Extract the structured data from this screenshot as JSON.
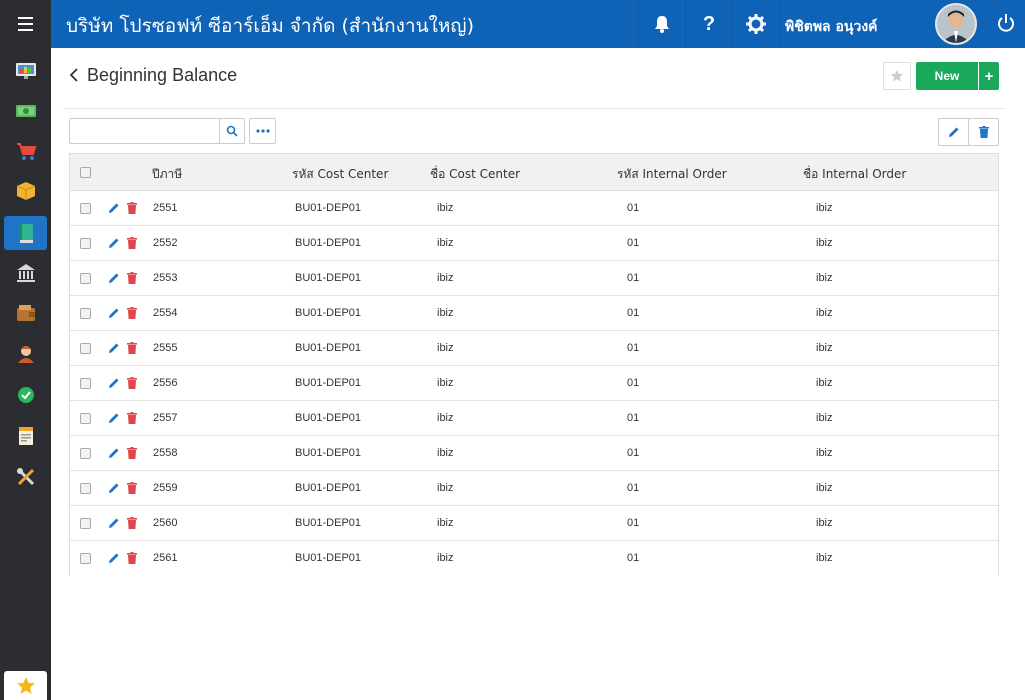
{
  "topbar": {
    "company": "บริษัท โปรซอฟท์ ซีอาร์เอ็ม จำกัด (สำนักงานใหญ่)",
    "user_name": "พิชิตพล อนุวงค์",
    "help_label": "?"
  },
  "sidebar": {
    "items": [
      "monitor-icon",
      "money-icon",
      "cart-icon",
      "box-icon",
      "book-icon",
      "bank-icon",
      "wallet-icon",
      "person-icon",
      "check-icon",
      "report-icon",
      "tools-icon"
    ],
    "active_index": 4,
    "favorite": "star-icon"
  },
  "page": {
    "title": "Beginning Balance",
    "new_label": "New",
    "new_plus": "+"
  },
  "search": {
    "value": "",
    "placeholder": ""
  },
  "table": {
    "columns": [
      "ปีภาษี",
      "รหัส Cost Center",
      "ชื่อ Cost Center",
      "รหัส Internal Order",
      "ชื่อ Internal Order"
    ],
    "rows": [
      [
        "2551",
        "BU01-DEP01",
        "ibiz",
        "01",
        "ibiz"
      ],
      [
        "2552",
        "BU01-DEP01",
        "ibiz",
        "01",
        "ibiz"
      ],
      [
        "2553",
        "BU01-DEP01",
        "ibiz",
        "01",
        "ibiz"
      ],
      [
        "2554",
        "BU01-DEP01",
        "ibiz",
        "01",
        "ibiz"
      ],
      [
        "2555",
        "BU01-DEP01",
        "ibiz",
        "01",
        "ibiz"
      ],
      [
        "2556",
        "BU01-DEP01",
        "ibiz",
        "01",
        "ibiz"
      ],
      [
        "2557",
        "BU01-DEP01",
        "ibiz",
        "01",
        "ibiz"
      ],
      [
        "2558",
        "BU01-DEP01",
        "ibiz",
        "01",
        "ibiz"
      ],
      [
        "2559",
        "BU01-DEP01",
        "ibiz",
        "01",
        "ibiz"
      ],
      [
        "2560",
        "BU01-DEP01",
        "ibiz",
        "01",
        "ibiz"
      ],
      [
        "2561",
        "BU01-DEP01",
        "ibiz",
        "01",
        "ibiz"
      ]
    ]
  },
  "colors": {
    "topbar": "#0f63b7",
    "sidebar": "#2b2d33",
    "accent": "#1f74c7",
    "new_button": "#1aa95b",
    "delete": "#e0474c"
  }
}
